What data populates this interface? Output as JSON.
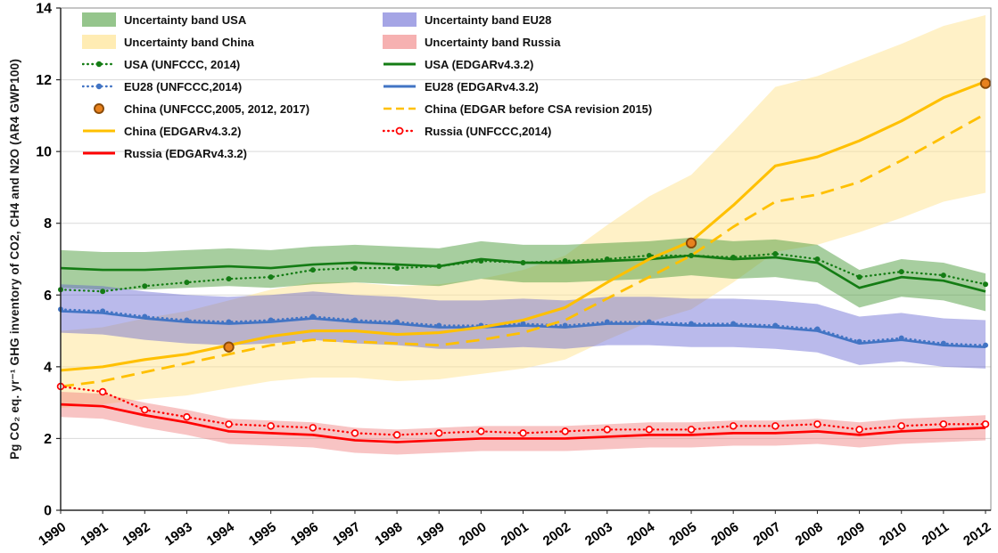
{
  "chart_data": {
    "type": "line",
    "title": "",
    "ylabel": "Pg CO₂ eq. yr⁻¹ GHG inventory of CO2, CH4 and N2O (AR4 GWP100)",
    "xlabel": "",
    "ylim": [
      0,
      14
    ],
    "yticks": [
      0,
      2,
      4,
      6,
      8,
      10,
      12,
      14
    ],
    "grid": "horizontal",
    "legend_position": "top-left-inside",
    "x": [
      1990,
      1991,
      1992,
      1993,
      1994,
      1995,
      1996,
      1997,
      1998,
      1999,
      2000,
      2001,
      2002,
      2003,
      2004,
      2005,
      2006,
      2007,
      2008,
      2009,
      2010,
      2011,
      2012
    ],
    "bands": [
      {
        "name": "Uncertainty band China",
        "color": "#ffe599",
        "opacity": 0.55,
        "lower": [
          2.85,
          2.95,
          3.1,
          3.2,
          3.4,
          3.6,
          3.7,
          3.7,
          3.6,
          3.65,
          3.8,
          3.95,
          4.2,
          4.75,
          5.25,
          5.6,
          6.35,
          7.2,
          7.4,
          7.75,
          8.15,
          8.6,
          8.85
        ],
        "upper": [
          5.0,
          5.1,
          5.35,
          5.55,
          5.85,
          6.15,
          6.35,
          6.35,
          6.25,
          6.3,
          6.45,
          6.7,
          7.1,
          7.95,
          8.75,
          9.35,
          10.55,
          11.8,
          12.1,
          12.55,
          13.0,
          13.5,
          13.8
        ]
      },
      {
        "name": "Uncertainty band USA",
        "color": "#4f9e3f",
        "opacity": 0.5,
        "lower": [
          6.2,
          6.15,
          6.15,
          6.2,
          6.25,
          6.2,
          6.3,
          6.35,
          6.3,
          6.25,
          6.45,
          6.35,
          6.35,
          6.4,
          6.45,
          6.55,
          6.45,
          6.5,
          6.35,
          5.65,
          5.95,
          5.85,
          5.55
        ],
        "upper": [
          7.25,
          7.2,
          7.2,
          7.25,
          7.3,
          7.25,
          7.35,
          7.4,
          7.35,
          7.3,
          7.5,
          7.4,
          7.4,
          7.45,
          7.5,
          7.6,
          7.5,
          7.55,
          7.4,
          6.7,
          7.0,
          6.9,
          6.6
        ]
      },
      {
        "name": "Uncertainty band EU28",
        "color": "#5b5bcf",
        "opacity": 0.42,
        "lower": [
          4.95,
          4.9,
          4.75,
          4.65,
          4.6,
          4.65,
          4.75,
          4.65,
          4.6,
          4.5,
          4.5,
          4.55,
          4.5,
          4.6,
          4.6,
          4.55,
          4.55,
          4.5,
          4.4,
          4.05,
          4.15,
          4.0,
          3.95
        ],
        "upper": [
          6.3,
          6.25,
          6.1,
          6.0,
          5.95,
          6.0,
          6.1,
          6.0,
          5.95,
          5.85,
          5.85,
          5.9,
          5.85,
          5.95,
          5.95,
          5.9,
          5.9,
          5.85,
          5.75,
          5.4,
          5.5,
          5.35,
          5.3
        ]
      },
      {
        "name": "Uncertainty band Russia",
        "color": "#f07d7d",
        "opacity": 0.45,
        "lower": [
          2.6,
          2.55,
          2.3,
          2.1,
          1.85,
          1.8,
          1.75,
          1.6,
          1.55,
          1.6,
          1.65,
          1.65,
          1.65,
          1.7,
          1.75,
          1.75,
          1.8,
          1.8,
          1.85,
          1.75,
          1.85,
          1.9,
          1.95
        ],
        "upper": [
          3.3,
          3.25,
          3.0,
          2.8,
          2.55,
          2.5,
          2.45,
          2.3,
          2.25,
          2.3,
          2.35,
          2.35,
          2.35,
          2.4,
          2.45,
          2.45,
          2.5,
          2.5,
          2.55,
          2.45,
          2.55,
          2.6,
          2.65
        ]
      }
    ],
    "series": [
      {
        "name": "USA (UNFCCC, 2014)",
        "color": "#147c14",
        "style": "dotted",
        "marker": "dot",
        "width": 2.3,
        "values": [
          6.15,
          6.1,
          6.25,
          6.35,
          6.45,
          6.5,
          6.7,
          6.75,
          6.75,
          6.8,
          6.95,
          6.9,
          6.95,
          7.0,
          7.1,
          7.1,
          7.05,
          7.15,
          7.0,
          6.5,
          6.65,
          6.55,
          6.3
        ]
      },
      {
        "name": "USA (EDGARv4.3.2)",
        "color": "#147c14",
        "style": "solid",
        "width": 2.7,
        "values": [
          6.75,
          6.7,
          6.7,
          6.75,
          6.8,
          6.75,
          6.85,
          6.9,
          6.85,
          6.8,
          7.0,
          6.9,
          6.9,
          6.95,
          7.0,
          7.1,
          7.0,
          7.05,
          6.9,
          6.2,
          6.5,
          6.4,
          6.1
        ]
      },
      {
        "name": "EU28 (UNFCCC,2014)",
        "color": "#4274c4",
        "style": "dotted",
        "marker": "dot",
        "width": 2.3,
        "values": [
          5.6,
          5.55,
          5.4,
          5.3,
          5.25,
          5.3,
          5.4,
          5.3,
          5.25,
          5.15,
          5.15,
          5.2,
          5.15,
          5.25,
          5.25,
          5.2,
          5.2,
          5.15,
          5.05,
          4.7,
          4.8,
          4.65,
          4.6
        ]
      },
      {
        "name": "EU28 (EDGARv4.3.2)",
        "color": "#4274c4",
        "style": "solid",
        "width": 2.7,
        "values": [
          5.55,
          5.5,
          5.35,
          5.25,
          5.2,
          5.25,
          5.35,
          5.25,
          5.2,
          5.1,
          5.1,
          5.15,
          5.1,
          5.2,
          5.2,
          5.15,
          5.15,
          5.1,
          5.0,
          4.65,
          4.75,
          4.6,
          4.55
        ]
      },
      {
        "name": "China (EDGAR before CSA revision 2015)",
        "color": "#ffc000",
        "style": "dashed",
        "width": 2.8,
        "values": [
          3.45,
          3.6,
          3.85,
          4.1,
          4.35,
          4.6,
          4.75,
          4.7,
          4.65,
          4.6,
          4.75,
          4.95,
          5.3,
          5.9,
          6.5,
          7.1,
          7.9,
          8.6,
          8.8,
          9.15,
          9.75,
          10.4,
          11.05
        ]
      },
      {
        "name": "China (EDGARv4.3.2)",
        "color": "#ffc000",
        "style": "solid",
        "width": 3.1,
        "values": [
          3.9,
          4.0,
          4.2,
          4.35,
          4.6,
          4.85,
          5.0,
          5.0,
          4.9,
          4.95,
          5.1,
          5.3,
          5.65,
          6.35,
          7.0,
          7.5,
          8.5,
          9.6,
          9.85,
          10.3,
          10.85,
          11.5,
          11.95
        ]
      },
      {
        "name": "Russia (UNFCCC,2014)",
        "color": "#ff0000",
        "style": "dotted",
        "marker": "open-circle",
        "width": 2.3,
        "values": [
          3.45,
          3.3,
          2.8,
          2.6,
          2.4,
          2.35,
          2.3,
          2.15,
          2.1,
          2.15,
          2.2,
          2.15,
          2.2,
          2.25,
          2.25,
          2.25,
          2.35,
          2.35,
          2.4,
          2.25,
          2.35,
          2.4,
          2.4
        ]
      },
      {
        "name": "Russia (EDGARv4.3.2)",
        "color": "#ff0000",
        "style": "solid",
        "width": 2.7,
        "values": [
          2.95,
          2.9,
          2.65,
          2.45,
          2.2,
          2.15,
          2.1,
          1.95,
          1.9,
          1.95,
          2.0,
          2.0,
          2.0,
          2.05,
          2.1,
          2.1,
          2.15,
          2.15,
          2.2,
          2.1,
          2.2,
          2.25,
          2.3
        ]
      },
      {
        "name": "China (UNFCCC,2005, 2012, 2017)",
        "color": "#e8821e",
        "stroke": "#8a4a08",
        "style": "none",
        "marker": "big-circle",
        "values": [
          null,
          null,
          null,
          null,
          4.55,
          null,
          null,
          null,
          null,
          null,
          null,
          null,
          null,
          null,
          null,
          7.45,
          null,
          null,
          null,
          null,
          null,
          null,
          11.9
        ]
      }
    ],
    "legend": [
      {
        "label": "Uncertainty band USA",
        "kind": "band",
        "color": "#4f9e3f",
        "opacity": 0.6
      },
      {
        "label": "Uncertainty band EU28",
        "kind": "band",
        "color": "#5b5bcf",
        "opacity": 0.55
      },
      {
        "label": "Uncertainty band China",
        "kind": "band",
        "color": "#ffe599",
        "opacity": 0.75
      },
      {
        "label": "Uncertainty band Russia",
        "kind": "band",
        "color": "#f07d7d",
        "opacity": 0.6
      },
      {
        "label": "USA (UNFCCC, 2014)",
        "kind": "line",
        "style": "dotted",
        "marker": "dot",
        "color": "#147c14"
      },
      {
        "label": "USA (EDGARv4.3.2)",
        "kind": "line",
        "style": "solid",
        "color": "#147c14"
      },
      {
        "label": "EU28 (UNFCCC,2014)",
        "kind": "line",
        "style": "dotted",
        "marker": "dot",
        "color": "#4274c4"
      },
      {
        "label": "EU28 (EDGARv4.3.2)",
        "kind": "line",
        "style": "solid",
        "color": "#4274c4"
      },
      {
        "label": "China (UNFCCC,2005, 2012, 2017)",
        "kind": "marker",
        "marker": "big-circle",
        "color": "#e8821e",
        "stroke": "#8a4a08"
      },
      {
        "label": "China (EDGAR before CSA revision 2015)",
        "kind": "line",
        "style": "dashed",
        "color": "#ffc000"
      },
      {
        "label": "China (EDGARv4.3.2)",
        "kind": "line",
        "style": "solid",
        "color": "#ffc000"
      },
      {
        "label": "Russia (UNFCCC,2014)",
        "kind": "line",
        "style": "dotted",
        "marker": "open-circle",
        "color": "#ff0000"
      },
      {
        "label": "Russia (EDGARv4.3.2)",
        "kind": "line",
        "style": "solid",
        "color": "#ff0000"
      }
    ]
  }
}
